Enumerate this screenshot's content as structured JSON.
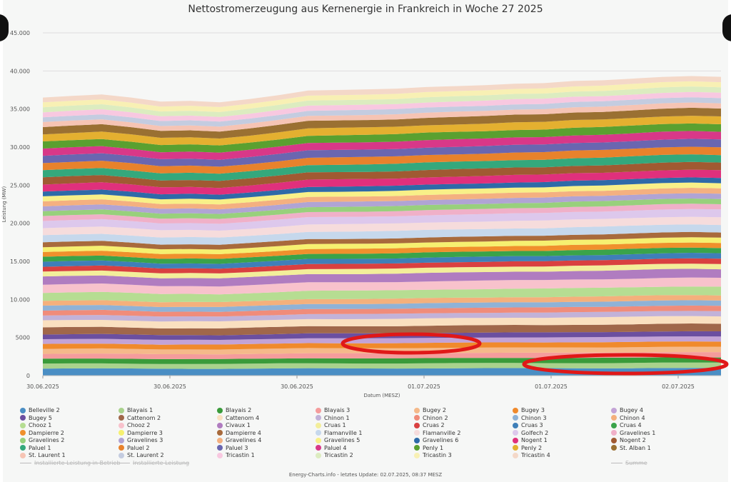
{
  "chart_data": {
    "type": "area",
    "stacked": true,
    "title": "Nettostromerzeugung aus Kernenergie in Frankreich in Woche 27 2025",
    "xlabel": "Datum (MESZ)",
    "ylabel": "Leistung (MW)",
    "ylim": [
      0,
      45000
    ],
    "yticks": [
      0,
      5000,
      10000,
      15000,
      20000,
      25000,
      30000,
      35000,
      40000,
      45000
    ],
    "ytick_labels": [
      "0",
      "5000",
      "10.000",
      "15.000",
      "20.000",
      "25.000",
      "30.000",
      "35.000",
      "40.000",
      "45.000"
    ],
    "x_start": "30.06.2025 00:00",
    "x_end": "02.07.2025 07:45",
    "xtick_labels": [
      "30.06.2025",
      "30.06.2025",
      "30.06.2025",
      "01.07.2025",
      "01.07.2025",
      "02.07.2025"
    ],
    "total_profile": [
      36500,
      36700,
      36900,
      36500,
      36000,
      36100,
      35900,
      36300,
      36800,
      37400,
      37500,
      37600,
      37700,
      37900,
      38000,
      38100,
      38300,
      38400,
      38700,
      38800,
      39000,
      39200,
      39300,
      39200
    ],
    "series": [
      {
        "name": "Belleville 2",
        "color": "#4a8ec4",
        "mw": 1300
      },
      {
        "name": "Blayais 1",
        "color": "#a9d28c",
        "mw": 910
      },
      {
        "name": "Blayais 2",
        "color": "#3a9b3a",
        "mw": 910
      },
      {
        "name": "Blayais 3",
        "color": "#f59c9c",
        "mw": 910
      },
      {
        "name": "Bugey 2",
        "color": "#f5b98a",
        "mw": 910
      },
      {
        "name": "Bugey 3",
        "color": "#f08a2c",
        "mw": 910
      },
      {
        "name": "Bugey 4",
        "color": "#c3a3d6",
        "mw": 880
      },
      {
        "name": "Bugey 5",
        "color": "#6b4fa0",
        "mw": 880
      },
      {
        "name": "Cattenom 2",
        "color": "#a0674a",
        "mw": 1300
      },
      {
        "name": "Cattenom 4",
        "color": "#fae0c0",
        "mw": 1300
      },
      {
        "name": "Chinon 1",
        "color": "#c2b2d8",
        "mw": 905
      },
      {
        "name": "Chinon 2",
        "color": "#f08c7a",
        "mw": 905
      },
      {
        "name": "Chinon 3",
        "color": "#8fb2d6",
        "mw": 905
      },
      {
        "name": "Chinon 4",
        "color": "#f4b07c",
        "mw": 905
      },
      {
        "name": "Chooz 1",
        "color": "#b6dd92",
        "mw": 1500
      },
      {
        "name": "Chooz 2",
        "color": "#f8c2cc",
        "mw": 1500
      },
      {
        "name": "Civaux 1",
        "color": "#b07cc0",
        "mw": 1495
      },
      {
        "name": "Cruas 1",
        "color": "#f3ee9a",
        "mw": 915
      },
      {
        "name": "Cruas 2",
        "color": "#d94040",
        "mw": 915
      },
      {
        "name": "Cruas 3",
        "color": "#3f7fb8",
        "mw": 915
      },
      {
        "name": "Cruas 4",
        "color": "#3aa34a",
        "mw": 915
      },
      {
        "name": "Dampierre 2",
        "color": "#f0902c",
        "mw": 890
      },
      {
        "name": "Dampierre 3",
        "color": "#f6f070",
        "mw": 890
      },
      {
        "name": "Dampierre 4",
        "color": "#a86a3c",
        "mw": 890
      },
      {
        "name": "Flamanville 1",
        "color": "#c6d8ec",
        "mw": 1330
      },
      {
        "name": "Flamanville 2",
        "color": "#f6dcdc",
        "mw": 1330
      },
      {
        "name": "Golfech 2",
        "color": "#ddc8ec",
        "mw": 1310
      },
      {
        "name": "Gravelines 1",
        "color": "#f0b0c8",
        "mw": 910
      },
      {
        "name": "Gravelines 2",
        "color": "#98d07c",
        "mw": 910
      },
      {
        "name": "Gravelines 3",
        "color": "#b0a4d4",
        "mw": 910
      },
      {
        "name": "Gravelines 4",
        "color": "#f4b080",
        "mw": 910
      },
      {
        "name": "Gravelines 5",
        "color": "#f8f088",
        "mw": 910
      },
      {
        "name": "Gravelines 6",
        "color": "#2e6aa8",
        "mw": 910
      },
      {
        "name": "Nogent 1",
        "color": "#e0307c",
        "mw": 1310
      },
      {
        "name": "Nogent 2",
        "color": "#a05a32",
        "mw": 1310
      },
      {
        "name": "Paluel 1",
        "color": "#34a87c",
        "mw": 1330
      },
      {
        "name": "Paluel 2",
        "color": "#e8822c",
        "mw": 1330
      },
      {
        "name": "Paluel 3",
        "color": "#6a66b0",
        "mw": 1330
      },
      {
        "name": "Paluel 4",
        "color": "#d83888",
        "mw": 1330
      },
      {
        "name": "Penly 1",
        "color": "#5aa030",
        "mw": 1330
      },
      {
        "name": "Penly 2",
        "color": "#e4b030",
        "mw": 1330
      },
      {
        "name": "St. Alban 1",
        "color": "#9a7032",
        "mw": 1335
      },
      {
        "name": "St. Laurent 1",
        "color": "#f6c4b4",
        "mw": 915
      },
      {
        "name": "St. Laurent 2",
        "color": "#c4cce0",
        "mw": 915
      },
      {
        "name": "Tricastin 1",
        "color": "#f8c8e0",
        "mw": 915
      },
      {
        "name": "Tricastin 2",
        "color": "#dcecc0",
        "mw": 915
      },
      {
        "name": "Tricastin 3",
        "color": "#f8f0b4",
        "mw": 915
      },
      {
        "name": "Tricastin 4",
        "color": "#f4d8c8",
        "mw": 915
      }
    ],
    "hidden_legend": [
      "Installierte Leistung in Betrieb",
      "Installierte Leistung",
      "Summe"
    ],
    "annotations": "red ellipses highlighting low-output bands near 01.07.2025 and 02.07.2025"
  },
  "footer": "Energy-Charts.info - letztes Update: 02.07.2025, 08:37 MESZ"
}
